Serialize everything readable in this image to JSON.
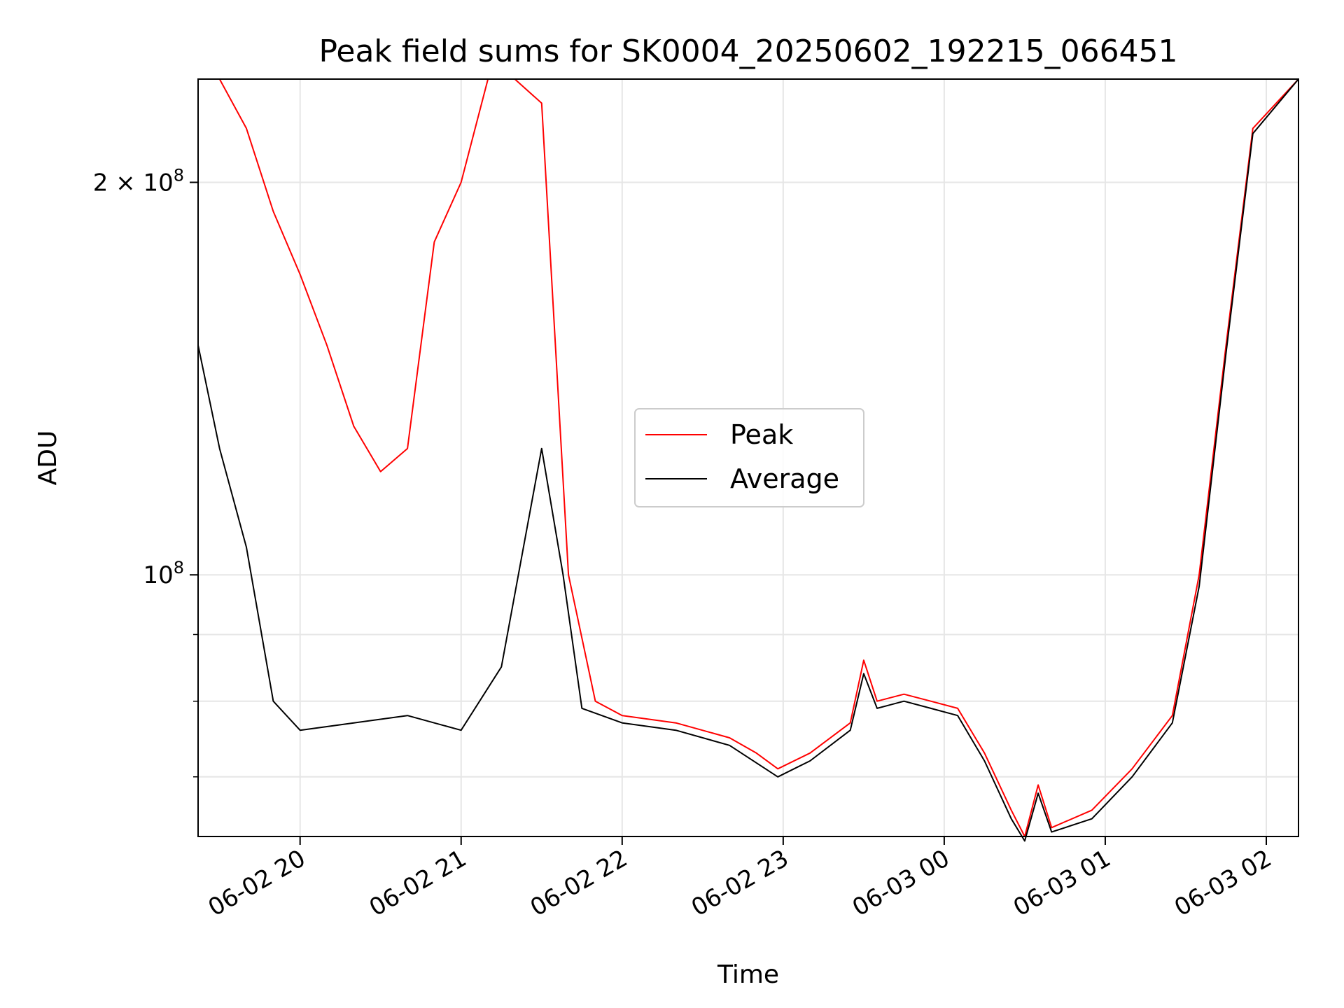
{
  "chart_data": {
    "type": "line",
    "title": "Peak field sums for SK0004_20250602_192215_066451",
    "xlabel": "Time",
    "ylabel": "ADU",
    "xscale": "time",
    "yscale": "log",
    "xlim": [
      "2025-06-02 19:22",
      "2025-06-03 02:12"
    ],
    "ylim": [
      63000000,
      240000000
    ],
    "grid": true,
    "legend_position": "center",
    "x_ticks": [
      {
        "value": "2025-06-02 20:00",
        "label": "06-02 20"
      },
      {
        "value": "2025-06-02 21:00",
        "label": "06-02 21"
      },
      {
        "value": "2025-06-02 22:00",
        "label": "06-02 22"
      },
      {
        "value": "2025-06-02 23:00",
        "label": "06-02 23"
      },
      {
        "value": "2025-06-03 00:00",
        "label": "06-03 00"
      },
      {
        "value": "2025-06-03 01:00",
        "label": "06-03 01"
      },
      {
        "value": "2025-06-03 02:00",
        "label": "06-03 02"
      }
    ],
    "y_ticks": [
      {
        "value": 100000000,
        "base": "10",
        "exp": "8"
      },
      {
        "value": 200000000,
        "base": "2 × 10",
        "exp": "8"
      }
    ],
    "y_minor_ticks": [
      60000000,
      70000000,
      80000000,
      90000000,
      300000000
    ],
    "series": [
      {
        "name": "Peak",
        "color": "#ff0000",
        "points": [
          [
            "2025-06-02 19:22",
            240000000
          ],
          [
            "2025-06-02 19:30",
            240000000
          ],
          [
            "2025-06-02 19:40",
            220000000
          ],
          [
            "2025-06-02 19:50",
            190000000
          ],
          [
            "2025-06-02 20:00",
            170000000
          ],
          [
            "2025-06-02 20:10",
            150000000
          ],
          [
            "2025-06-02 20:20",
            130000000
          ],
          [
            "2025-06-02 20:30",
            120000000
          ],
          [
            "2025-06-02 20:40",
            125000000
          ],
          [
            "2025-06-02 20:50",
            180000000
          ],
          [
            "2025-06-02 21:00",
            200000000
          ],
          [
            "2025-06-02 21:10",
            240000000
          ],
          [
            "2025-06-02 21:20",
            240000000
          ],
          [
            "2025-06-02 21:30",
            230000000
          ],
          [
            "2025-06-02 21:40",
            100000000
          ],
          [
            "2025-06-02 21:50",
            80000000
          ],
          [
            "2025-06-02 22:00",
            78000000
          ],
          [
            "2025-06-02 22:20",
            77000000
          ],
          [
            "2025-06-02 22:40",
            75000000
          ],
          [
            "2025-06-02 22:50",
            73000000
          ],
          [
            "2025-06-02 22:58",
            71000000
          ],
          [
            "2025-06-02 23:10",
            73000000
          ],
          [
            "2025-06-02 23:25",
            77000000
          ],
          [
            "2025-06-02 23:30",
            86000000
          ],
          [
            "2025-06-02 23:35",
            80000000
          ],
          [
            "2025-06-02 23:45",
            81000000
          ],
          [
            "2025-06-02 23:55",
            80000000
          ],
          [
            "2025-06-03 00:05",
            79000000
          ],
          [
            "2025-06-03 00:15",
            73000000
          ],
          [
            "2025-06-03 00:25",
            66000000
          ],
          [
            "2025-06-03 00:30",
            63000000
          ],
          [
            "2025-06-03 00:35",
            69000000
          ],
          [
            "2025-06-03 00:40",
            64000000
          ],
          [
            "2025-06-03 00:55",
            66000000
          ],
          [
            "2025-06-03 01:10",
            71000000
          ],
          [
            "2025-06-03 01:25",
            78000000
          ],
          [
            "2025-06-03 01:35",
            100000000
          ],
          [
            "2025-06-03 01:45",
            150000000
          ],
          [
            "2025-06-03 01:55",
            220000000
          ],
          [
            "2025-06-03 02:12",
            240000000
          ]
        ]
      },
      {
        "name": "Average",
        "color": "#000000",
        "points": [
          [
            "2025-06-02 19:22",
            150000000
          ],
          [
            "2025-06-02 19:30",
            125000000
          ],
          [
            "2025-06-02 19:40",
            105000000
          ],
          [
            "2025-06-02 19:50",
            80000000
          ],
          [
            "2025-06-02 20:00",
            76000000
          ],
          [
            "2025-06-02 20:20",
            77000000
          ],
          [
            "2025-06-02 20:40",
            78000000
          ],
          [
            "2025-06-02 21:00",
            76000000
          ],
          [
            "2025-06-02 21:15",
            85000000
          ],
          [
            "2025-06-02 21:30",
            125000000
          ],
          [
            "2025-06-02 21:38",
            100000000
          ],
          [
            "2025-06-02 21:45",
            79000000
          ],
          [
            "2025-06-02 22:00",
            77000000
          ],
          [
            "2025-06-02 22:20",
            76000000
          ],
          [
            "2025-06-02 22:40",
            74000000
          ],
          [
            "2025-06-02 22:58",
            70000000
          ],
          [
            "2025-06-02 23:10",
            72000000
          ],
          [
            "2025-06-02 23:25",
            76000000
          ],
          [
            "2025-06-02 23:30",
            84000000
          ],
          [
            "2025-06-02 23:35",
            79000000
          ],
          [
            "2025-06-02 23:45",
            80000000
          ],
          [
            "2025-06-02 23:55",
            79000000
          ],
          [
            "2025-06-03 00:05",
            78000000
          ],
          [
            "2025-06-03 00:15",
            72000000
          ],
          [
            "2025-06-03 00:25",
            65000000
          ],
          [
            "2025-06-03 00:30",
            62500000
          ],
          [
            "2025-06-03 00:35",
            68000000
          ],
          [
            "2025-06-03 00:40",
            63500000
          ],
          [
            "2025-06-03 00:55",
            65000000
          ],
          [
            "2025-06-03 01:10",
            70000000
          ],
          [
            "2025-06-03 01:25",
            77000000
          ],
          [
            "2025-06-03 01:35",
            98000000
          ],
          [
            "2025-06-03 01:45",
            148000000
          ],
          [
            "2025-06-03 01:55",
            218000000
          ],
          [
            "2025-06-03 02:12",
            240000000
          ]
        ]
      }
    ]
  }
}
